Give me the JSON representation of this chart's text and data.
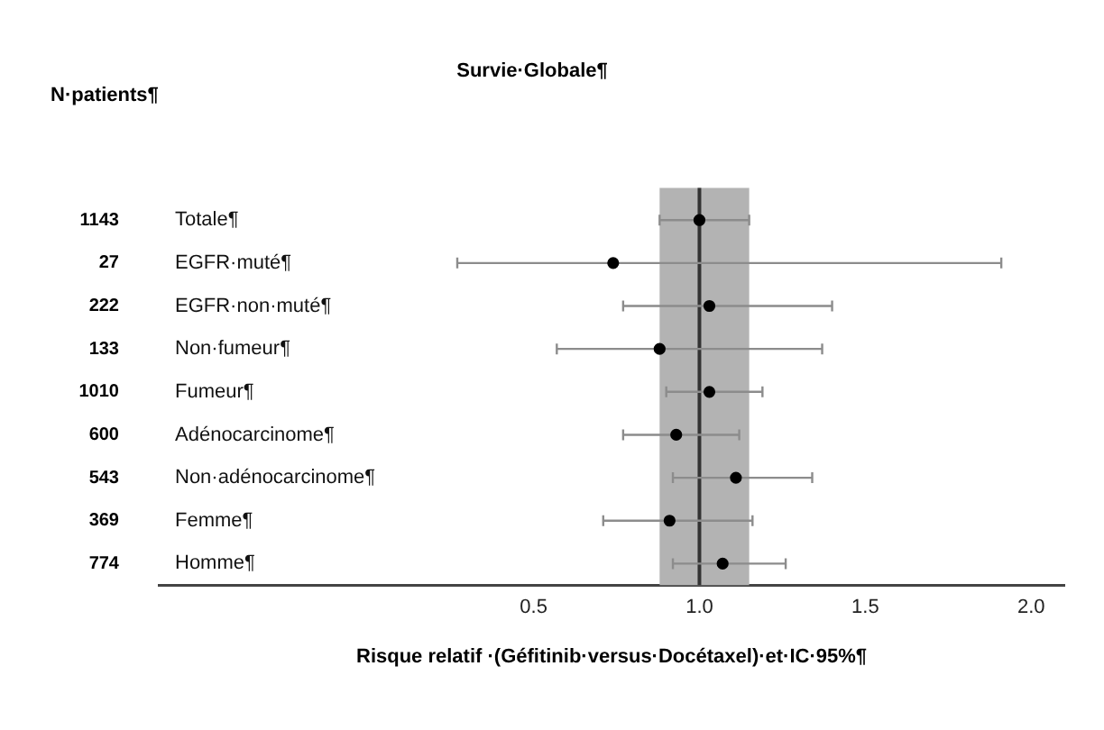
{
  "chart_data": {
    "type": "scatter",
    "orientation": "horizontal",
    "title": "Survie·Globale¶",
    "xlabel": "Risque relatif ·(Géfitinib·versus·Docétaxel)·et·IC·95%¶",
    "categories": [
      "Totale¶",
      "EGFR·muté¶",
      "EGFR·non·muté¶",
      "Non·fumeur¶",
      "Fumeur¶",
      "Adénocarcinome¶",
      "Non·adénocarcinome¶",
      "Femme¶",
      "Homme¶"
    ],
    "values": [
      1.0,
      0.74,
      1.03,
      0.88,
      1.03,
      0.93,
      1.11,
      0.91,
      1.07
    ],
    "errors": [
      [
        0.88,
        1.15
      ],
      [
        0.27,
        1.91
      ],
      [
        0.77,
        1.4
      ],
      [
        0.57,
        1.37
      ],
      [
        0.9,
        1.19
      ],
      [
        0.77,
        1.12
      ],
      [
        0.92,
        1.34
      ],
      [
        0.71,
        1.16
      ],
      [
        0.92,
        1.26
      ]
    ],
    "color": "#000000",
    "marker": "circle",
    "grid": false,
    "legend": false,
    "xlim": [
      -0.63,
      2.1
    ],
    "xticks": [
      0.5,
      {
        "value": 1,
        "label": "1.0"
      },
      1.5,
      {
        "value": 2,
        "label": "2.0"
      }
    ],
    "bands": [
      {
        "axis": "x",
        "from": 0.88,
        "to": 1.15,
        "color": "#b3b3b3"
      }
    ],
    "ref_lines": [
      {
        "axis": "x",
        "value": 1,
        "color": "#333333"
      }
    ],
    "annotations": [
      "N·patients¶",
      "1143",
      "27",
      "222",
      "133",
      "1010",
      "600",
      "543",
      "369",
      "774"
    ]
  }
}
